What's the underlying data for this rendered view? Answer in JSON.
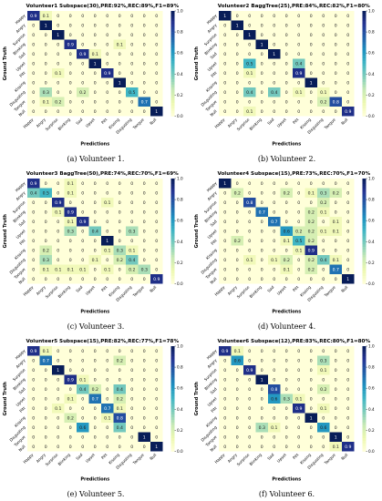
{
  "labels": [
    "Happy",
    "Angry",
    "Surprise",
    "Blinking",
    "Sad",
    "Upset",
    "Pitt",
    "Kissing",
    "Disgusting",
    "Tongue",
    "Null"
  ],
  "axis": {
    "xlabel": "Predictions",
    "ylabel": "Ground Truth"
  },
  "colorbar_ticks": [
    "1.0",
    "0.8",
    "0.6",
    "0.4",
    "0.2",
    "0.0"
  ],
  "colorscale": [
    "#ffffd9",
    "#edf8b1",
    "#c7e9b4",
    "#7fcdbb",
    "#41b6c4",
    "#1d91c0",
    "#225ea8",
    "#253494",
    "#081d58"
  ],
  "chart_data": [
    {
      "type": "heatmap",
      "title": "Volunteer1 Subspace(30),PRE:92%,REC:89%,F1=89%",
      "caption": "(a) Volunteer 1.",
      "vmin": 0,
      "vmax": 1,
      "matrix": [
        [
          0.9,
          0.1,
          0,
          0,
          0,
          0,
          0,
          0,
          0,
          0,
          0
        ],
        [
          0,
          1,
          0,
          0,
          0,
          0,
          0,
          0,
          0,
          0,
          0
        ],
        [
          0,
          0,
          1,
          0,
          0,
          0,
          0,
          0,
          0,
          0,
          0
        ],
        [
          0,
          0,
          0,
          0.9,
          0,
          0,
          0,
          0.1,
          0,
          0,
          0
        ],
        [
          0,
          0,
          0,
          0,
          0.9,
          0.1,
          0,
          0,
          0,
          0,
          0
        ],
        [
          0,
          0,
          0,
          0,
          0,
          1,
          0,
          0,
          0,
          0,
          0
        ],
        [
          0,
          0,
          0.1,
          0,
          0,
          0,
          0.9,
          0,
          0,
          0,
          0
        ],
        [
          0,
          0,
          0,
          0,
          0,
          0,
          0,
          1,
          0,
          0,
          0
        ],
        [
          0,
          0.3,
          0,
          0,
          0.2,
          0,
          0,
          0,
          0.5,
          0,
          0
        ],
        [
          0,
          0.1,
          0.2,
          0,
          0,
          0,
          0,
          0,
          0,
          0.7,
          0
        ],
        [
          0,
          0,
          0,
          0,
          0,
          0,
          0,
          0,
          0,
          0,
          1
        ]
      ]
    },
    {
      "type": "heatmap",
      "title": "Volunteer2 BaggTree(25),PRE:84%,REC:82%,F1=80%",
      "caption": "(b) Volunteer 2.",
      "vmin": 0,
      "vmax": 1,
      "matrix": [
        [
          1,
          0,
          0,
          0,
          0,
          0,
          0,
          0,
          0,
          0,
          0
        ],
        [
          0,
          1,
          0,
          0,
          0,
          0,
          0,
          0,
          0,
          0,
          0
        ],
        [
          0,
          0,
          1,
          0,
          0,
          0,
          0,
          0,
          0,
          0,
          0
        ],
        [
          0,
          0,
          0,
          1,
          0,
          0,
          0,
          0,
          0,
          0,
          0
        ],
        [
          0,
          0,
          0,
          0,
          1,
          0,
          0,
          0,
          0,
          0,
          0
        ],
        [
          0,
          0,
          0.5,
          0,
          0,
          0,
          0.4,
          0,
          0,
          0,
          0
        ],
        [
          0,
          0,
          0.1,
          0,
          0,
          0,
          0.9,
          0,
          0,
          0,
          0
        ],
        [
          0,
          0,
          0,
          0,
          0,
          0,
          0,
          1,
          0,
          0,
          0
        ],
        [
          0,
          0,
          0.4,
          0,
          0.4,
          0,
          0.1,
          0,
          0.1,
          0,
          0
        ],
        [
          0,
          0,
          0,
          0,
          0,
          0,
          0,
          0,
          0.2,
          0.8,
          0
        ],
        [
          0,
          0,
          0.1,
          0,
          0,
          0,
          0,
          0,
          0,
          0,
          0.9
        ]
      ]
    },
    {
      "type": "heatmap",
      "title": "Volunteer3 BaggTree(50),PRE:74%,REC:70%,F1=69%",
      "caption": "(c) Volunteer 3.",
      "vmin": 0,
      "vmax": 1,
      "matrix": [
        [
          0.9,
          0,
          0,
          0.1,
          0,
          0,
          0,
          0,
          0,
          0,
          0
        ],
        [
          0.4,
          0.5,
          0,
          0.1,
          0,
          0,
          0,
          0,
          0,
          0,
          0
        ],
        [
          0,
          0,
          0.9,
          0,
          0,
          0,
          0.1,
          0,
          0,
          0,
          0
        ],
        [
          0,
          0,
          0.1,
          0.9,
          0,
          0,
          0,
          0,
          0,
          0,
          0
        ],
        [
          0,
          0,
          0,
          0.1,
          0.9,
          0,
          0,
          0,
          0,
          0,
          0
        ],
        [
          0,
          0,
          0,
          0.3,
          0,
          0.4,
          0,
          0,
          0.3,
          0,
          0
        ],
        [
          0,
          0,
          0,
          0,
          0,
          0,
          1,
          0,
          0,
          0,
          0
        ],
        [
          0,
          0.2,
          0,
          0,
          0,
          0,
          0.1,
          0.3,
          0.1,
          0,
          0
        ],
        [
          0,
          0.3,
          0,
          0,
          0,
          0.1,
          0,
          0.2,
          0.4,
          0,
          0
        ],
        [
          0,
          0.1,
          0.1,
          0.1,
          0.1,
          0,
          0.1,
          0,
          0.2,
          0.3,
          0
        ],
        [
          0,
          0,
          0,
          0,
          0,
          0,
          0,
          0,
          0,
          0,
          0.9
        ]
      ]
    },
    {
      "type": "heatmap",
      "title": "Volunteer4 Subspace(15),PRE:73%,REC:70%,F1=70%",
      "caption": "(d) Volunteer 4.",
      "vmin": 0,
      "vmax": 1,
      "matrix": [
        [
          1,
          0,
          0,
          0,
          0,
          0,
          0,
          0,
          0,
          0,
          0
        ],
        [
          0,
          0.2,
          0,
          0,
          0,
          0.2,
          0,
          0.1,
          0.3,
          0.2,
          0
        ],
        [
          0,
          0,
          0.8,
          0,
          0,
          0,
          0,
          0,
          0.2,
          0,
          0
        ],
        [
          0,
          0,
          0,
          0.7,
          0,
          0,
          0,
          0.2,
          0.1,
          0,
          0
        ],
        [
          0,
          0,
          0,
          0,
          0.7,
          0,
          0,
          0.2,
          0,
          0.1,
          0
        ],
        [
          0,
          0,
          0,
          0,
          0,
          0.6,
          0.2,
          0.2,
          0.1,
          0.1,
          0
        ],
        [
          0,
          0.2,
          0,
          0,
          0,
          0.1,
          0.5,
          0.2,
          0,
          0,
          0
        ],
        [
          0,
          0,
          0,
          0,
          0,
          0,
          0.1,
          0.9,
          0,
          0,
          0
        ],
        [
          0,
          0,
          0.1,
          0,
          0.1,
          0.2,
          0,
          0.2,
          0.4,
          0.1,
          0
        ],
        [
          0,
          0,
          0,
          0,
          0,
          0.1,
          0,
          0.2,
          0,
          0.7,
          0
        ],
        [
          0,
          0,
          0,
          0,
          0,
          0,
          0,
          0,
          0,
          0,
          1
        ]
      ]
    },
    {
      "type": "heatmap",
      "title": "Volunteer5 Subspace(15),PRE:82%,REC:77%,F1=78%",
      "caption": "(e) Volunteer 5.",
      "vmin": 0,
      "vmax": 1,
      "matrix": [
        [
          0.9,
          0.1,
          0,
          0,
          0,
          0,
          0,
          0,
          0,
          0,
          0
        ],
        [
          0,
          0.7,
          0,
          0,
          0,
          0,
          0,
          0.2,
          0,
          0,
          0
        ],
        [
          0,
          0,
          1,
          0,
          0,
          0,
          0,
          0,
          0,
          0,
          0
        ],
        [
          0,
          0,
          0,
          0.9,
          0.1,
          0,
          0,
          0,
          0,
          0,
          0
        ],
        [
          0,
          0,
          0,
          0,
          0.4,
          0.2,
          0,
          0.4,
          0,
          0,
          0
        ],
        [
          0,
          0,
          0,
          0.1,
          0,
          0.7,
          0,
          0.2,
          0,
          0,
          0
        ],
        [
          0,
          0,
          0.1,
          0,
          0,
          0,
          0.7,
          0.1,
          0,
          0,
          0
        ],
        [
          0,
          0,
          0,
          0.2,
          0,
          0,
          0.1,
          0.8,
          0,
          0,
          0
        ],
        [
          0,
          0,
          0,
          0,
          0.6,
          0,
          0,
          0.4,
          0,
          0,
          0
        ],
        [
          0,
          0,
          0,
          0,
          0,
          0,
          0,
          0,
          0,
          1,
          0
        ],
        [
          0,
          0,
          0,
          0,
          0,
          0,
          0,
          0,
          0,
          0,
          1
        ]
      ]
    },
    {
      "type": "heatmap",
      "title": "Volunteer6 Subspace(12),PRE:83%,REC:80%,F1=80%",
      "caption": "(f) Volunteer 6.",
      "vmin": 0,
      "vmax": 1,
      "matrix": [
        [
          0.9,
          0.1,
          0,
          0,
          0,
          0,
          0,
          0,
          0,
          0,
          0
        ],
        [
          0,
          0.6,
          0,
          0,
          0,
          0,
          0,
          0,
          0.3,
          0,
          0
        ],
        [
          0,
          0,
          0.9,
          0,
          0,
          0,
          0,
          0,
          0.1,
          0,
          0
        ],
        [
          0,
          0,
          0,
          1,
          0,
          0,
          0,
          0,
          0,
          0,
          0
        ],
        [
          0,
          0,
          0,
          0,
          0.8,
          0,
          0,
          0,
          0.2,
          0,
          0
        ],
        [
          0,
          0,
          0,
          0,
          0.6,
          0.3,
          0.1,
          0,
          0,
          0,
          0
        ],
        [
          0,
          0,
          0,
          0,
          0,
          0,
          0.9,
          0,
          0.1,
          0,
          0
        ],
        [
          0,
          0,
          0,
          0,
          0,
          0,
          0,
          1,
          0,
          0,
          0
        ],
        [
          0,
          0,
          0,
          0.3,
          0.1,
          0,
          0,
          0,
          0.6,
          0,
          0
        ],
        [
          0,
          0,
          0,
          0,
          0,
          0,
          0,
          0,
          0,
          1,
          0
        ],
        [
          0,
          0,
          0,
          0,
          0,
          0,
          0,
          0,
          0,
          0.1,
          0.9
        ]
      ]
    }
  ]
}
